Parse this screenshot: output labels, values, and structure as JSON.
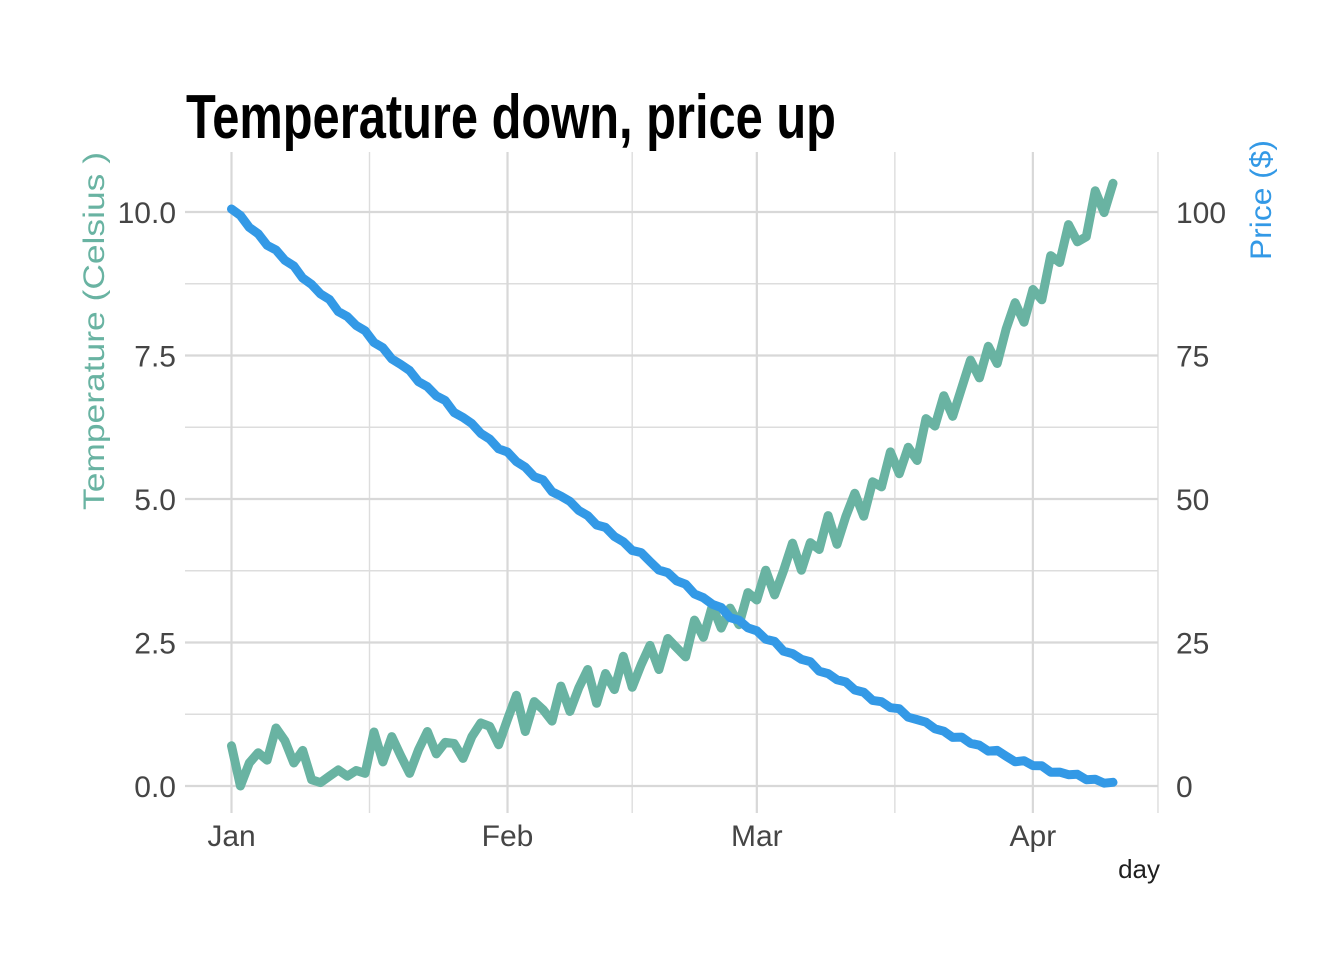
{
  "chart_data": {
    "type": "line",
    "title": "Temperature down, price up",
    "background": "#ffffff",
    "x_axis": {
      "label": "day",
      "tick_labels": [
        "Jan",
        "Feb",
        "Mar",
        "Apr"
      ],
      "tick_days": [
        1,
        32,
        60,
        91
      ],
      "minor_tick_days": [
        16.5,
        46,
        75.5,
        105.05
      ],
      "start": "Jan 1",
      "end": "Apr 10",
      "n_points": 100
    },
    "y_axis_left": {
      "label": "Temperature (Celsius )",
      "color": "#69b3a2",
      "tick_values": [
        0,
        2.5,
        5,
        7.5,
        10
      ],
      "tick_labels": [
        "0.0",
        "2.5",
        "5.0",
        "7.5",
        "10.0"
      ],
      "minor_ticks": [
        1.25,
        3.75,
        6.25,
        8.75
      ],
      "range": [
        0,
        10.5
      ]
    },
    "y_axis_right": {
      "label": "Price ($)",
      "color": "#3399e6",
      "tick_values": [
        0,
        25,
        50,
        75,
        100
      ],
      "tick_labels": [
        "0",
        "25",
        "50",
        "75",
        "100"
      ],
      "coeff": 10,
      "range": [
        0,
        105
      ]
    },
    "grid": {
      "major_color": "#d8d8d8",
      "minor_color": "#dddddd",
      "legend": "none"
    },
    "text_color": "#454545",
    "series": [
      {
        "name": "temperature",
        "axis": "left",
        "color": "#69b3a2",
        "line_width": 9,
        "values": [
          0.7,
          0.0,
          0.4,
          0.58,
          0.45,
          1.01,
          0.79,
          0.4,
          0.62,
          0.11,
          0.06,
          0.17,
          0.28,
          0.17,
          0.27,
          0.22,
          0.94,
          0.42,
          0.86,
          0.53,
          0.22,
          0.63,
          0.95,
          0.56,
          0.76,
          0.74,
          0.48,
          0.86,
          1.1,
          1.04,
          0.72,
          1.16,
          1.58,
          0.95,
          1.47,
          1.33,
          1.13,
          1.74,
          1.3,
          1.71,
          2.03,
          1.44,
          1.96,
          1.68,
          2.26,
          1.72,
          2.11,
          2.45,
          2.03,
          2.57,
          2.41,
          2.25,
          2.89,
          2.59,
          3.14,
          2.75,
          3.1,
          2.81,
          3.37,
          3.24,
          3.76,
          3.33,
          3.75,
          4.23,
          3.76,
          4.24,
          4.12,
          4.71,
          4.21,
          4.7,
          5.1,
          4.7,
          5.3,
          5.21,
          5.82,
          5.44,
          5.9,
          5.67,
          6.4,
          6.27,
          6.8,
          6.44,
          6.93,
          7.42,
          7.11,
          7.66,
          7.36,
          7.96,
          8.42,
          8.08,
          8.65,
          8.47,
          9.24,
          9.12,
          9.78,
          9.48,
          9.57,
          10.37,
          9.99,
          10.5
        ]
      },
      {
        "name": "price",
        "axis": "right",
        "color": "#3399e6",
        "line_width": 9,
        "values": [
          100.52,
          99.39,
          97.32,
          96.21,
          94.2,
          93.38,
          91.58,
          90.61,
          88.48,
          87.38,
          85.74,
          84.77,
          82.64,
          81.78,
          80.23,
          79.32,
          77.27,
          76.34,
          74.41,
          73.45,
          72.39,
          70.43,
          69.57,
          67.96,
          67.16,
          65.07,
          64.22,
          63.13,
          61.42,
          60.43,
          58.75,
          58.19,
          56.51,
          55.54,
          53.88,
          53.33,
          51.28,
          50.51,
          49.59,
          47.99,
          47.1,
          45.47,
          45.06,
          43.46,
          42.56,
          41.03,
          40.66,
          39.11,
          37.61,
          37.16,
          35.73,
          35.15,
          33.45,
          32.81,
          31.66,
          31.1,
          29.32,
          28.89,
          27.54,
          27.03,
          25.55,
          25.19,
          23.49,
          23.07,
          22.08,
          21.65,
          20.0,
          19.59,
          18.51,
          18.12,
          16.72,
          16.34,
          14.92,
          14.68,
          13.64,
          13.46,
          11.98,
          11.57,
          11.12,
          9.96,
          9.54,
          8.47,
          8.52,
          7.44,
          7.11,
          6.08,
          6.21,
          5.19,
          4.22,
          4.4,
          3.56,
          3.52,
          2.41,
          2.43,
          1.96,
          2.04,
          1.1,
          1.18,
          0.49,
          0.65
        ]
      }
    ]
  }
}
